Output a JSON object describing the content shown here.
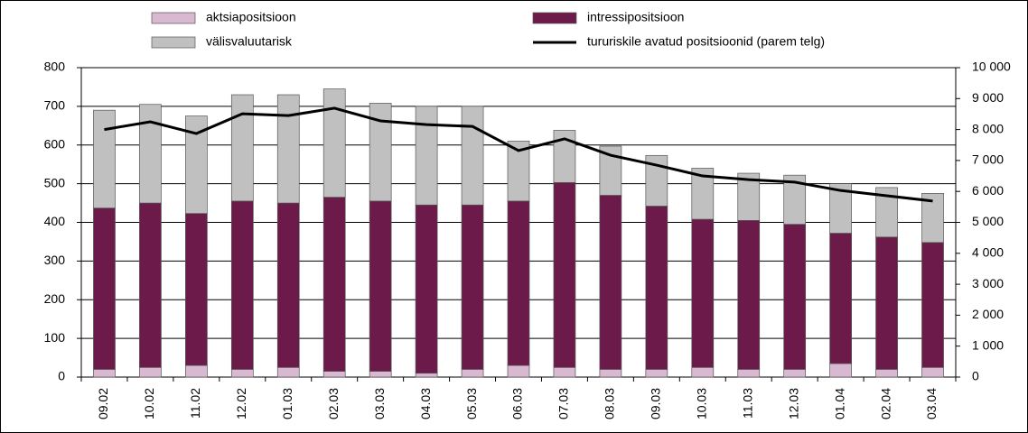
{
  "chart_data": {
    "type": "bar-line",
    "categories": [
      "09.02",
      "10.02",
      "11.02",
      "12.02",
      "01.03",
      "02.03",
      "03.03",
      "04.03",
      "05.03",
      "06.03",
      "07.03",
      "08.03",
      "09.03",
      "10.03",
      "11.03",
      "12.03",
      "01.04",
      "02.04",
      "03.04"
    ],
    "series": [
      {
        "name": "aktsiapositsioon",
        "color": "#d9b8d2",
        "values": [
          20,
          25,
          30,
          20,
          25,
          15,
          15,
          10,
          20,
          30,
          25,
          20,
          20,
          25,
          20,
          20,
          35,
          20,
          25
        ]
      },
      {
        "name": "intressipositsioon",
        "color": "#6b1a4a",
        "values": [
          417,
          425,
          393,
          435,
          425,
          450,
          440,
          435,
          425,
          425,
          478,
          450,
          422,
          383,
          385,
          375,
          337,
          342,
          323
        ]
      },
      {
        "name": "välisvaluutarisk",
        "color": "#c0c0c0",
        "values": [
          253,
          255,
          252,
          275,
          280,
          280,
          253,
          255,
          255,
          155,
          135,
          127,
          131,
          132,
          122,
          127,
          128,
          128,
          127
        ]
      },
      {
        "name": "tururiskile avatud positsioonid (parem telg)",
        "color": "#000000",
        "axis": "y2",
        "line": true,
        "values": [
          8000,
          8250,
          7870,
          8510,
          8450,
          8690,
          8280,
          8160,
          8100,
          7320,
          7700,
          7170,
          6850,
          6500,
          6380,
          6300,
          6030,
          5860,
          5690
        ]
      }
    ],
    "ylim": [
      0,
      800
    ],
    "yticks": [
      0,
      100,
      200,
      300,
      400,
      500,
      600,
      700,
      800
    ],
    "y2lim": [
      0,
      10000
    ],
    "y2ticks": [
      0,
      {
        "value": 1000,
        "label": "1 000"
      },
      {
        "value": 2000,
        "label": "2 000"
      },
      {
        "value": 3000,
        "label": "3 000"
      },
      {
        "value": 4000,
        "label": "4 000"
      },
      {
        "value": 5000,
        "label": "5 000"
      },
      {
        "value": 6000,
        "label": "6 000"
      },
      {
        "value": 7000,
        "label": "7 000"
      },
      {
        "value": 8000,
        "label": "8 000"
      },
      {
        "value": 9000,
        "label": "9 000"
      },
      {
        "value": 10000,
        "label": "10 000"
      }
    ],
    "grid": true,
    "legend": "top"
  }
}
